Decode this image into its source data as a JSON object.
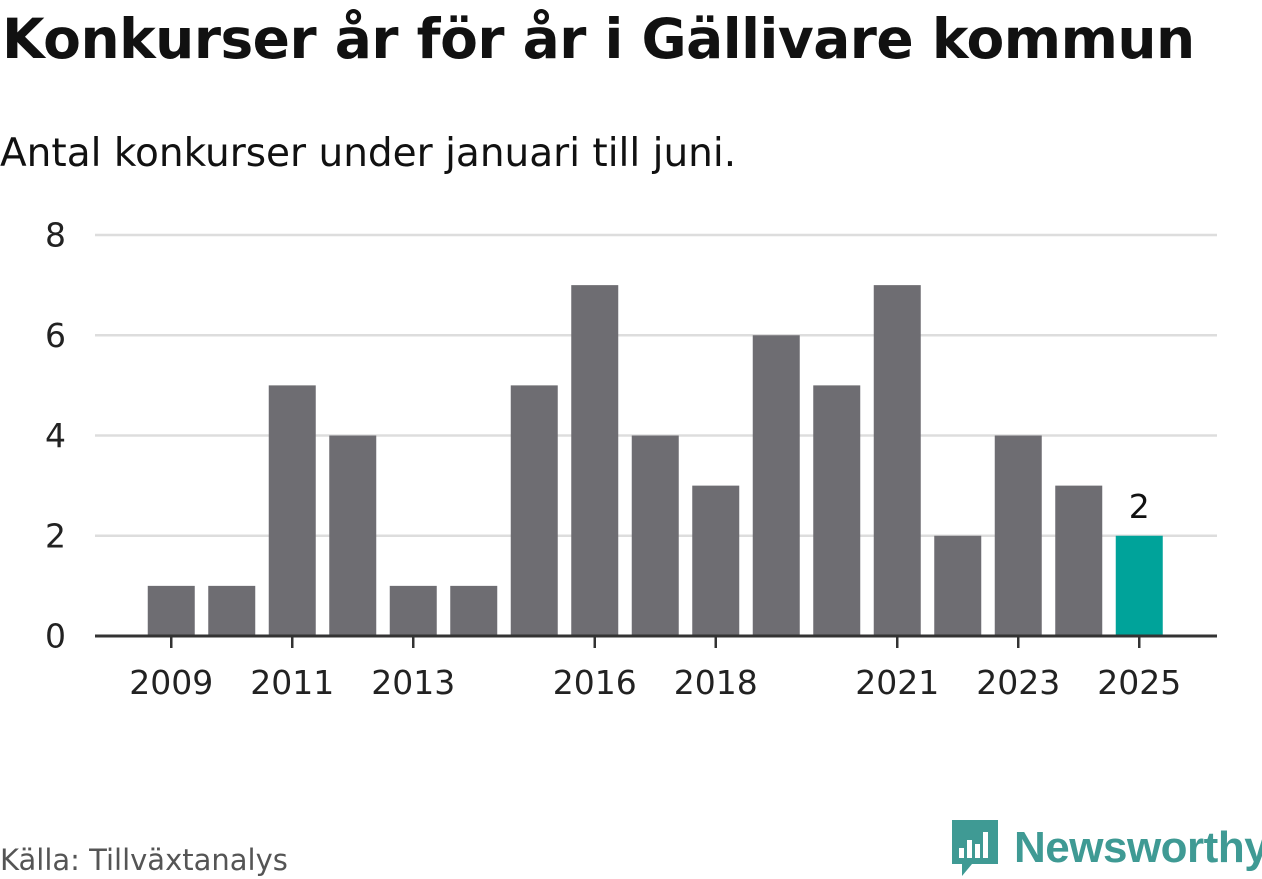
{
  "header": {
    "title": "Konkurser år för år i Gällivare kommun",
    "subtitle": "Antal konkurser under januari till juni."
  },
  "footer": {
    "source": "Källa: Tillväxtanalys",
    "brand_name": "Newsworthy",
    "brand_icon": "bar-chart-speech-bubble-icon"
  },
  "colors": {
    "bar": "#6e6d72",
    "highlight": "#00a39a",
    "grid": "#dddddd",
    "axis": "#333333",
    "brand": "#3f9a94"
  },
  "chart_data": {
    "type": "bar",
    "categories": [
      "2009",
      "2010",
      "2011",
      "2012",
      "2013",
      "2014",
      "2015",
      "2016",
      "2017",
      "2018",
      "2019",
      "2020",
      "2021",
      "2022",
      "2023",
      "2024",
      "2025"
    ],
    "values": [
      1,
      1,
      5,
      4,
      1,
      1,
      5,
      7,
      4,
      3,
      6,
      5,
      7,
      2,
      4,
      3,
      2
    ],
    "tick_labels_x": [
      "2009",
      "2011",
      "2013",
      "2016",
      "2018",
      "2021",
      "2023",
      "2025"
    ],
    "yticks": [
      0,
      2,
      4,
      6,
      8
    ],
    "ylim": [
      0,
      8
    ],
    "highlight_category": "2025",
    "data_labels": [
      {
        "category": "2025",
        "text": "2"
      }
    ],
    "title": "Konkurser år för år i Gällivare kommun",
    "subtitle": "Antal konkurser under januari till juni.",
    "xlabel": "",
    "ylabel": "",
    "grid": true,
    "legend": false
  }
}
